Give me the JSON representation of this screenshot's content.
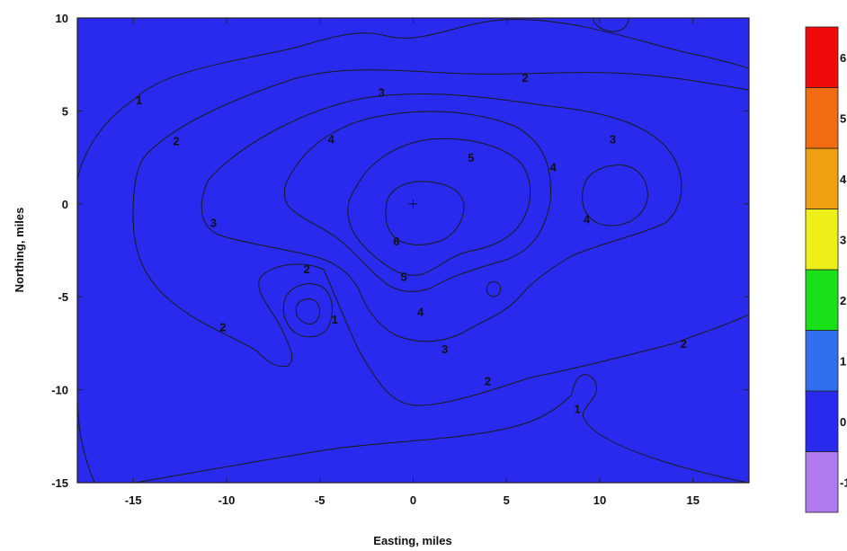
{
  "chart_data": {
    "type": "contour",
    "xlabel": "Easting, miles",
    "ylabel": "Northing, miles",
    "xlim": [
      -18,
      18
    ],
    "ylim": [
      -15,
      10
    ],
    "x_ticks": [
      -15,
      -10,
      -5,
      0,
      5,
      10,
      15
    ],
    "y_ticks": [
      -15,
      -10,
      -5,
      0,
      5,
      10
    ],
    "contour_levels": [
      0,
      1,
      2,
      3,
      4,
      5,
      6
    ],
    "colorbar": {
      "levels": [
        "-1",
        "0",
        "1",
        "2",
        "3",
        "4",
        "5",
        "6"
      ],
      "colors": [
        "#b07aee",
        "#2a2aee",
        "#2f6ff0",
        "#19e019",
        "#eeee18",
        "#f09f12",
        "#f26a12",
        "#f00a0a"
      ]
    },
    "contour_labels": [
      {
        "text": "1",
        "x": -14.7,
        "y": 5.6
      },
      {
        "text": "2",
        "x": -12.7,
        "y": 3.4
      },
      {
        "text": "3",
        "x": -1.7,
        "y": 6.0
      },
      {
        "text": "2",
        "x": 6.0,
        "y": 6.8
      },
      {
        "text": "3",
        "x": 10.7,
        "y": 3.5
      },
      {
        "text": "4",
        "x": -4.4,
        "y": 3.5
      },
      {
        "text": "5",
        "x": 3.1,
        "y": 2.5
      },
      {
        "text": "4",
        "x": 7.5,
        "y": 2.0
      },
      {
        "text": "3",
        "x": -10.7,
        "y": -1.0
      },
      {
        "text": "4",
        "x": 9.3,
        "y": -0.8
      },
      {
        "text": "6",
        "x": -0.9,
        "y": -2.0
      },
      {
        "text": "2",
        "x": -5.7,
        "y": -3.5
      },
      {
        "text": "5",
        "x": -0.5,
        "y": -3.9
      },
      {
        "text": "1",
        "x": -4.2,
        "y": -6.2
      },
      {
        "text": "4",
        "x": 0.4,
        "y": -5.8
      },
      {
        "text": "2",
        "x": -10.2,
        "y": -6.6
      },
      {
        "text": "3",
        "x": 1.7,
        "y": -7.8
      },
      {
        "text": "2",
        "x": 14.5,
        "y": -7.5
      },
      {
        "text": "2",
        "x": 4.0,
        "y": -9.5
      },
      {
        "text": "1",
        "x": 8.8,
        "y": -11.0
      }
    ],
    "peak_marker": {
      "x": 0.0,
      "y": 0.0
    },
    "grid": false
  }
}
